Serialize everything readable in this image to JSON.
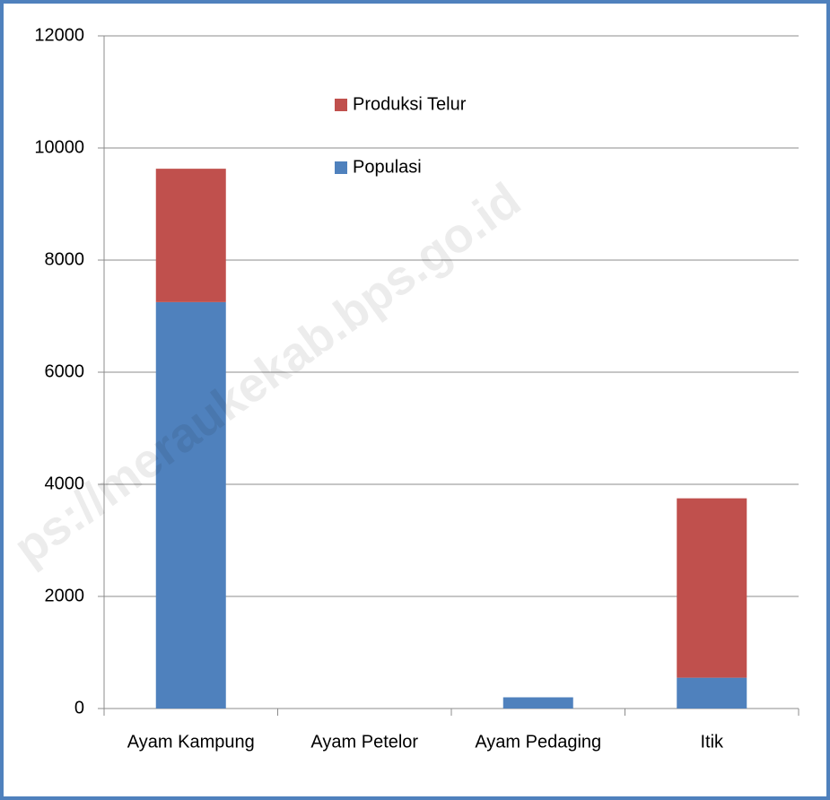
{
  "chart_data": {
    "type": "stacked_bar",
    "categories": [
      "Ayam Kampung",
      "Ayam Petelor",
      "Ayam Pedaging",
      "Itik"
    ],
    "series": [
      {
        "name": "Populasi",
        "color": "#4f81bd",
        "values": [
          7250,
          0,
          200,
          550
        ]
      },
      {
        "name": "Produksi Telur",
        "color": "#c0504d",
        "values": [
          2380,
          0,
          0,
          3200
        ]
      }
    ],
    "ylim": [
      0,
      12000
    ],
    "yticks": [
      0,
      2000,
      4000,
      6000,
      8000,
      10000,
      12000
    ],
    "grid": true,
    "legend": "top",
    "watermark": "ps://meraukekab.bps.go.id"
  }
}
